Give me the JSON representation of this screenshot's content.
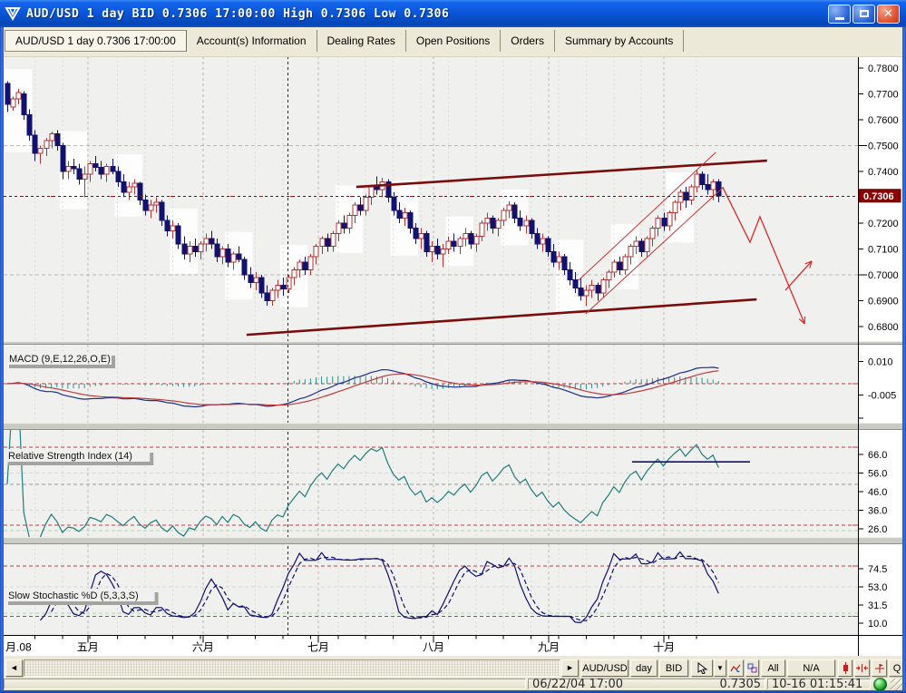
{
  "window": {
    "title": "AUD/USD 1 day BID 0.7306 17:00:00 High 0.7306 Low 0.7306",
    "app_icon": "v-shield-logo"
  },
  "tabs": [
    {
      "label": "AUD/USD 1 day 0.7306 17:00:00",
      "active": true
    },
    {
      "label": "Account(s) Information",
      "active": false
    },
    {
      "label": "Dealing Rates",
      "active": false
    },
    {
      "label": "Open Positions",
      "active": false
    },
    {
      "label": "Orders",
      "active": false
    },
    {
      "label": "Summary by Accounts",
      "active": false
    }
  ],
  "toolbar": {
    "scroll_left": "◄",
    "scroll_right": "►",
    "pair": "AUD/USD",
    "period": "day",
    "price_type": "BID",
    "all": "All",
    "na": "N/A",
    "q": "Q",
    "dropdown": "▼"
  },
  "statusbar": {
    "datetime": "06/22/04 17:00",
    "bid": "0.7305",
    "clock": "10-16 01:15:41"
  },
  "chart_data": {
    "type": "candlestick",
    "symbol": "AUD/USD",
    "period": "1 day",
    "current_price": "0.7306",
    "price_axis": {
      "ticks": [
        {
          "t": "0.7800",
          "v": 0.78
        },
        {
          "t": "0.7700",
          "v": 0.77
        },
        {
          "t": "0.7600",
          "v": 0.76
        },
        {
          "t": "0.7500",
          "v": 0.75
        },
        {
          "t": "0.7400",
          "v": 0.74
        },
        {
          "t": "0.7200",
          "v": 0.72
        },
        {
          "t": "0.7100",
          "v": 0.71
        },
        {
          "t": "0.7000",
          "v": 0.7
        },
        {
          "t": "0.6900",
          "v": 0.69
        },
        {
          "t": "0.6800",
          "v": 0.68
        }
      ],
      "long_tick_values": [
        0.75,
        0.7
      ],
      "badge": {
        "t": "0.7306",
        "v": 0.7306
      }
    },
    "x_axis": {
      "labels": [
        {
          "text": "月.08",
          "i": 0.6
        },
        {
          "text": "五月",
          "i": 14.6
        },
        {
          "text": "六月",
          "i": 35.5
        },
        {
          "text": "七月",
          "i": 56.4
        },
        {
          "text": "八月",
          "i": 77.3
        },
        {
          "text": "九月",
          "i": 98.2
        },
        {
          "text": "十月",
          "i": 119.1
        }
      ]
    },
    "candles": [
      [
        0.774,
        0.775,
        0.763,
        0.766
      ],
      [
        0.765,
        0.769,
        0.7635,
        0.768
      ],
      [
        0.768,
        0.772,
        0.766,
        0.7705
      ],
      [
        0.77,
        0.771,
        0.76,
        0.762
      ],
      [
        0.762,
        0.764,
        0.752,
        0.754
      ],
      [
        0.754,
        0.756,
        0.744,
        0.747
      ],
      [
        0.747,
        0.75,
        0.743,
        0.749
      ],
      [
        0.749,
        0.753,
        0.746,
        0.752
      ],
      [
        0.752,
        0.7555,
        0.749,
        0.7545
      ],
      [
        0.7545,
        0.756,
        0.748,
        0.75
      ],
      [
        0.75,
        0.751,
        0.737,
        0.74
      ],
      [
        0.74,
        0.744,
        0.737,
        0.742
      ],
      [
        0.742,
        0.745,
        0.739,
        0.741
      ],
      [
        0.741,
        0.743,
        0.735,
        0.737
      ],
      [
        0.737,
        0.742,
        0.73,
        0.739
      ],
      [
        0.739,
        0.744,
        0.736,
        0.743
      ],
      [
        0.743,
        0.746,
        0.74,
        0.7415
      ],
      [
        0.7415,
        0.744,
        0.737,
        0.739
      ],
      [
        0.739,
        0.743,
        0.736,
        0.742
      ],
      [
        0.742,
        0.745,
        0.739,
        0.74
      ],
      [
        0.74,
        0.742,
        0.734,
        0.736
      ],
      [
        0.736,
        0.739,
        0.73,
        0.732
      ],
      [
        0.732,
        0.736,
        0.729,
        0.734
      ],
      [
        0.734,
        0.737,
        0.731,
        0.7355
      ],
      [
        0.7355,
        0.736,
        0.727,
        0.729
      ],
      [
        0.729,
        0.731,
        0.723,
        0.725
      ],
      [
        0.725,
        0.729,
        0.722,
        0.727
      ],
      [
        0.727,
        0.73,
        0.724,
        0.728
      ],
      [
        0.728,
        0.729,
        0.719,
        0.721
      ],
      [
        0.721,
        0.723,
        0.715,
        0.717
      ],
      [
        0.717,
        0.721,
        0.714,
        0.719
      ],
      [
        0.719,
        0.72,
        0.71,
        0.712
      ],
      [
        0.712,
        0.715,
        0.706,
        0.708
      ],
      [
        0.708,
        0.713,
        0.705,
        0.711
      ],
      [
        0.711,
        0.714,
        0.707,
        0.709
      ],
      [
        0.709,
        0.713,
        0.706,
        0.712
      ],
      [
        0.712,
        0.716,
        0.709,
        0.714
      ],
      [
        0.714,
        0.717,
        0.71,
        0.712
      ],
      [
        0.712,
        0.714,
        0.705,
        0.707
      ],
      [
        0.707,
        0.711,
        0.704,
        0.71
      ],
      [
        0.71,
        0.712,
        0.703,
        0.705
      ],
      [
        0.705,
        0.709,
        0.702,
        0.708
      ],
      [
        0.708,
        0.711,
        0.705,
        0.706
      ],
      [
        0.706,
        0.707,
        0.698,
        0.7
      ],
      [
        0.7,
        0.703,
        0.695,
        0.697
      ],
      [
        0.697,
        0.701,
        0.694,
        0.699
      ],
      [
        0.699,
        0.7,
        0.691,
        0.693
      ],
      [
        0.693,
        0.696,
        0.688,
        0.69
      ],
      [
        0.69,
        0.695,
        0.688,
        0.694
      ],
      [
        0.694,
        0.698,
        0.691,
        0.696
      ],
      [
        0.696,
        0.699,
        0.692,
        0.6945
      ],
      [
        0.6945,
        0.7,
        0.693,
        0.699
      ],
      [
        0.699,
        0.703,
        0.696,
        0.702
      ],
      [
        0.702,
        0.706,
        0.699,
        0.705
      ],
      [
        0.705,
        0.707,
        0.7,
        0.702
      ],
      [
        0.702,
        0.708,
        0.7,
        0.707
      ],
      [
        0.707,
        0.712,
        0.704,
        0.711
      ],
      [
        0.711,
        0.715,
        0.708,
        0.714
      ],
      [
        0.714,
        0.716,
        0.709,
        0.711
      ],
      [
        0.711,
        0.717,
        0.709,
        0.716
      ],
      [
        0.716,
        0.721,
        0.713,
        0.72
      ],
      [
        0.72,
        0.723,
        0.716,
        0.718
      ],
      [
        0.718,
        0.724,
        0.716,
        0.723
      ],
      [
        0.723,
        0.728,
        0.72,
        0.727
      ],
      [
        0.727,
        0.73,
        0.723,
        0.725
      ],
      [
        0.725,
        0.731,
        0.723,
        0.73
      ],
      [
        0.73,
        0.735,
        0.727,
        0.734
      ],
      [
        0.734,
        0.738,
        0.731,
        0.733
      ],
      [
        0.733,
        0.7375,
        0.73,
        0.736
      ],
      [
        0.736,
        0.737,
        0.728,
        0.73
      ],
      [
        0.73,
        0.732,
        0.723,
        0.725
      ],
      [
        0.725,
        0.728,
        0.72,
        0.722
      ],
      [
        0.722,
        0.726,
        0.719,
        0.724
      ],
      [
        0.724,
        0.725,
        0.716,
        0.718
      ],
      [
        0.718,
        0.72,
        0.712,
        0.714
      ],
      [
        0.714,
        0.718,
        0.71,
        0.716
      ],
      [
        0.716,
        0.717,
        0.707,
        0.709
      ],
      [
        0.709,
        0.713,
        0.705,
        0.711
      ],
      [
        0.711,
        0.714,
        0.706,
        0.708
      ],
      [
        0.708,
        0.712,
        0.703,
        0.71
      ],
      [
        0.71,
        0.715,
        0.708,
        0.713
      ],
      [
        0.713,
        0.716,
        0.709,
        0.711
      ],
      [
        0.711,
        0.715,
        0.708,
        0.714
      ],
      [
        0.714,
        0.718,
        0.711,
        0.716
      ],
      [
        0.716,
        0.717,
        0.71,
        0.712
      ],
      [
        0.712,
        0.716,
        0.709,
        0.715
      ],
      [
        0.715,
        0.721,
        0.713,
        0.72
      ],
      [
        0.72,
        0.724,
        0.717,
        0.722
      ],
      [
        0.722,
        0.723,
        0.716,
        0.718
      ],
      [
        0.718,
        0.722,
        0.715,
        0.721
      ],
      [
        0.721,
        0.726,
        0.719,
        0.725
      ],
      [
        0.725,
        0.7285,
        0.722,
        0.727
      ],
      [
        0.727,
        0.728,
        0.72,
        0.722
      ],
      [
        0.722,
        0.725,
        0.717,
        0.719
      ],
      [
        0.719,
        0.723,
        0.716,
        0.721
      ],
      [
        0.721,
        0.722,
        0.714,
        0.716
      ],
      [
        0.716,
        0.718,
        0.71,
        0.712
      ],
      [
        0.712,
        0.716,
        0.709,
        0.714
      ],
      [
        0.714,
        0.715,
        0.707,
        0.709
      ],
      [
        0.709,
        0.712,
        0.703,
        0.705
      ],
      [
        0.705,
        0.709,
        0.702,
        0.707
      ],
      [
        0.707,
        0.708,
        0.7,
        0.702
      ],
      [
        0.702,
        0.705,
        0.696,
        0.698
      ],
      [
        0.698,
        0.701,
        0.693,
        0.695
      ],
      [
        0.695,
        0.699,
        0.69,
        0.692
      ],
      [
        0.692,
        0.696,
        0.688,
        0.694
      ],
      [
        0.694,
        0.698,
        0.691,
        0.696
      ],
      [
        0.696,
        0.697,
        0.69,
        0.693
      ],
      [
        0.693,
        0.699,
        0.691,
        0.698
      ],
      [
        0.698,
        0.702,
        0.695,
        0.701
      ],
      [
        0.701,
        0.706,
        0.699,
        0.705
      ],
      [
        0.705,
        0.707,
        0.7,
        0.702
      ],
      [
        0.702,
        0.708,
        0.7,
        0.707
      ],
      [
        0.707,
        0.712,
        0.704,
        0.711
      ],
      [
        0.711,
        0.715,
        0.708,
        0.713
      ],
      [
        0.713,
        0.714,
        0.707,
        0.709
      ],
      [
        0.709,
        0.715,
        0.707,
        0.714
      ],
      [
        0.714,
        0.719,
        0.711,
        0.718
      ],
      [
        0.718,
        0.723,
        0.715,
        0.722
      ],
      [
        0.722,
        0.724,
        0.717,
        0.719
      ],
      [
        0.719,
        0.725,
        0.717,
        0.724
      ],
      [
        0.724,
        0.729,
        0.721,
        0.728
      ],
      [
        0.728,
        0.733,
        0.725,
        0.732
      ],
      [
        0.732,
        0.734,
        0.726,
        0.729
      ],
      [
        0.729,
        0.735,
        0.727,
        0.734
      ],
      [
        0.734,
        0.7405,
        0.732,
        0.739
      ],
      [
        0.739,
        0.74,
        0.733,
        0.735
      ],
      [
        0.735,
        0.739,
        0.731,
        0.733
      ],
      [
        0.733,
        0.737,
        0.729,
        0.736
      ],
      [
        0.736,
        0.737,
        0.728,
        0.7306
      ]
    ],
    "indicators": {
      "macd": {
        "label": "MACD (9,E,12,26,O,E)",
        "fast": 12,
        "slow": 26,
        "signal": 9,
        "axis": [
          {
            "t": "0.010",
            "v": 0.01
          },
          {
            "t": "-0.005",
            "v": -0.005
          }
        ],
        "zero_guide": 0
      },
      "rsi": {
        "label": "Relative Strength Index (14)",
        "period": 14,
        "axis": [
          {
            "t": "66.0",
            "v": 66
          },
          {
            "t": "56.0",
            "v": 56
          },
          {
            "t": "46.0",
            "v": 46
          },
          {
            "t": "36.0",
            "v": 36
          },
          {
            "t": "26.0",
            "v": 26
          }
        ],
        "guides": [
          {
            "v": 70,
            "c": "#c43b3b"
          },
          {
            "v": 50,
            "c": "#9a9a94"
          },
          {
            "v": 56,
            "c": "#d9d9d1"
          },
          {
            "v": 36,
            "c": "#d9d9d1"
          },
          {
            "v": 28,
            "c": "#c43b3b"
          },
          {
            "v": 25,
            "c": "#a9d8a9"
          }
        ]
      },
      "stochastic": {
        "label": "Slow Stochastic %D  (5,3,3,S)",
        "k": 5,
        "slowing": 3,
        "d": 3,
        "axis": [
          {
            "t": "74.5",
            "v": 74.5
          },
          {
            "t": "53.0",
            "v": 53
          },
          {
            "t": "31.5",
            "v": 31.5
          },
          {
            "t": "10.0",
            "v": 10
          }
        ],
        "guides": [
          {
            "v": 78,
            "c": "#c43b3b"
          },
          {
            "v": 18,
            "c": "#c43b3b"
          },
          {
            "v": 22,
            "c": "#a9d8a9"
          },
          {
            "v": 53,
            "c": "#d9d9d1"
          }
        ]
      }
    },
    "overlays": {
      "resistance_line": {
        "i1": 63.3,
        "p1": 0.734,
        "i2": 137.8,
        "p2": 0.7442
      },
      "support_line": {
        "i1": 43.4,
        "p1": 0.6768,
        "i2": 135.9,
        "p2": 0.6905
      },
      "channel_upper": {
        "i1": 103.6,
        "p1": 0.6979,
        "i2": 128.5,
        "p2": 0.7474
      },
      "channel_lower": {
        "i1": 104.9,
        "p1": 0.6849,
        "i2": 129.9,
        "p2": 0.734
      },
      "forecast_path": [
        [
          129.8,
          0.7337
        ],
        [
          134.7,
          0.7126
        ],
        [
          136.5,
          0.7225
        ],
        [
          144.6,
          0.6811
        ]
      ],
      "forecast_branch": [
        [
          141.1,
          0.694
        ],
        [
          145.9,
          0.7053
        ]
      ],
      "rsi_trendline": {
        "i1": 113.3,
        "v1": 62,
        "i2": 134.7,
        "v2": 62
      },
      "crosshair_index": 50.9,
      "current_price_line": 0.7306
    },
    "colors": {
      "panel_bg": "#f0f0ee",
      "band": "#ffffff",
      "axis_bg": "#ffffff",
      "grid_month": "#b9b9b2",
      "grid_week": "#dcdcd4",
      "candle_down": "#12126e",
      "candle_up": "#b23434",
      "trend_maroon": "#7a0c0c",
      "thin_red": "#cc3333",
      "forecast_red": "#d92b2b",
      "macd_line": "#1a2f8f",
      "macd_signal": "#c03c3c",
      "macd_hist": "#2e8f8f",
      "rsi_line": "#1f7d7d",
      "stoch_line": "#10106e",
      "guide_red": "#c43b3b",
      "badge_bg": "#8b0000",
      "badge_text": "#ffffff",
      "crosshair": "#2a2a2a",
      "divider": "#cbcbc6"
    }
  }
}
